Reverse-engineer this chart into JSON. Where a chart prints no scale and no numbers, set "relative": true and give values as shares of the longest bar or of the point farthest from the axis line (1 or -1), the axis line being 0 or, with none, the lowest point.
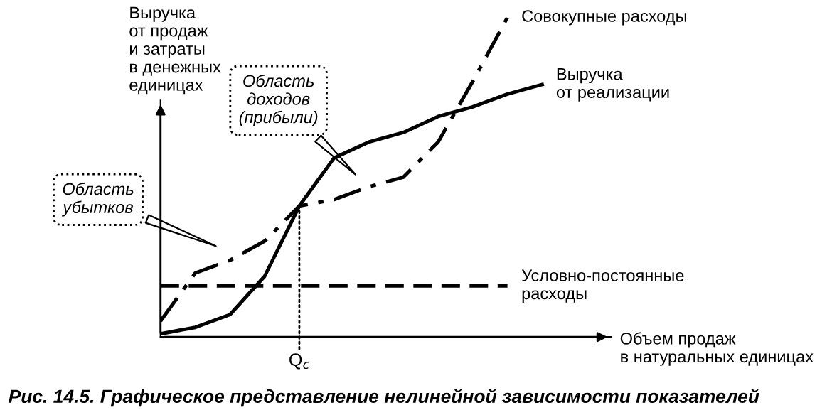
{
  "chart_data": {
    "type": "line",
    "relative": true,
    "title": "Рис. 14.5. Графическое представление нелинейной зависимости показателей",
    "ylabel": "Выручка\nот продаж\nи затраты\nв денежных\nединицах",
    "xlabel": "Объем продаж\nв натуральных единицах",
    "categories": [
      null,
      null,
      null,
      null,
      null,
      null,
      null,
      null,
      null,
      null,
      null,
      null
    ],
    "series": [
      {
        "name": "Совокупные расходы",
        "color": "#000000",
        "line_style": "dashdot",
        "values": [
          0.05,
          0.2,
          0.24,
          0.3,
          0.41,
          0.43,
          0.47,
          0.5,
          0.61,
          0.8,
          1.0,
          null
        ]
      },
      {
        "name": "Выручка\nот реализации",
        "color": "#000000",
        "line_style": "solid",
        "values": [
          0.01,
          0.03,
          0.07,
          0.19,
          0.41,
          0.56,
          0.61,
          0.64,
          0.69,
          0.72,
          0.76,
          0.79
        ]
      },
      {
        "name": "Условно-постоянные\nрасходы",
        "color": "#000000",
        "line_style": "dashed",
        "values": [
          0.16,
          0.16,
          0.16,
          0.16,
          0.16,
          0.16,
          0.16,
          0.16,
          0.16,
          0.16,
          0.16,
          null
        ]
      }
    ],
    "annotations": [
      "Область\nдоходов\n(прибыли)",
      "Область\nубытков",
      "Q$_{c}$"
    ],
    "grid": false
  }
}
